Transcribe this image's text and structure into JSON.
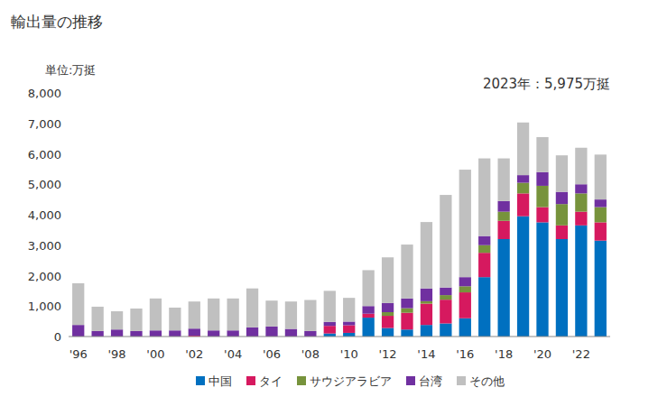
{
  "chart_data": {
    "type": "bar",
    "title": "輸出量の推移",
    "y_label": "単位:万挺",
    "annotation": "2023年：5,975万挺",
    "stacked": true,
    "grid": false,
    "legend": "bottom",
    "categories": [
      "'96",
      null,
      "'98",
      null,
      "'00",
      null,
      "'02",
      null,
      "'04",
      null,
      "'06",
      null,
      "'08",
      null,
      "'10",
      null,
      "'12",
      null,
      "'14",
      null,
      "'16",
      null,
      "'18",
      null,
      "'20",
      null,
      "'22",
      null
    ],
    "ylim": [
      0,
      8000
    ],
    "yticks": [
      0,
      {
        "value": 1000,
        "label": "1,000"
      },
      {
        "value": 2000,
        "label": "2,000"
      },
      {
        "value": 3000,
        "label": "3,000"
      },
      {
        "value": 4000,
        "label": "4,000"
      },
      {
        "value": 5000,
        "label": "5,000"
      },
      {
        "value": 6000,
        "label": "6,000"
      },
      {
        "value": 7000,
        "label": "7,000"
      },
      {
        "value": 8000,
        "label": "8,000"
      }
    ],
    "series": [
      {
        "name": "中国",
        "color": "#0070c0",
        "values": [
          0,
          0,
          0,
          0,
          0,
          0,
          0,
          0,
          0,
          0,
          0,
          0,
          0,
          100,
          120,
          620,
          280,
          230,
          380,
          430,
          600,
          1950,
          3200,
          3950,
          3750,
          3200,
          3650,
          3150
        ]
      },
      {
        "name": "タイ",
        "color": "#d6195f",
        "values": [
          0,
          0,
          0,
          0,
          0,
          0,
          30,
          0,
          0,
          0,
          0,
          0,
          0,
          250,
          250,
          130,
          400,
          550,
          700,
          780,
          850,
          800,
          600,
          750,
          500,
          450,
          450,
          600
        ]
      },
      {
        "name": "サウジアラビア",
        "color": "#77933c",
        "values": [
          0,
          0,
          0,
          0,
          0,
          0,
          0,
          0,
          0,
          0,
          0,
          0,
          0,
          0,
          0,
          0,
          120,
          150,
          80,
          150,
          200,
          250,
          300,
          350,
          700,
          700,
          600,
          500
        ]
      },
      {
        "name": "台湾",
        "color": "#7030a0",
        "values": [
          380,
          180,
          230,
          180,
          200,
          200,
          230,
          200,
          200,
          300,
          330,
          250,
          180,
          130,
          120,
          250,
          300,
          320,
          420,
          250,
          300,
          300,
          350,
          250,
          450,
          400,
          300,
          250
        ]
      },
      {
        "name": "その他",
        "color": "#c0c0c0",
        "values": [
          1370,
          800,
          600,
          740,
          1050,
          750,
          890,
          1050,
          1050,
          1280,
          850,
          900,
          1020,
          1020,
          780,
          1180,
          1500,
          1770,
          2180,
          3040,
          3530,
          2550,
          1400,
          1730,
          1150,
          1200,
          1200,
          1475
        ]
      }
    ]
  }
}
